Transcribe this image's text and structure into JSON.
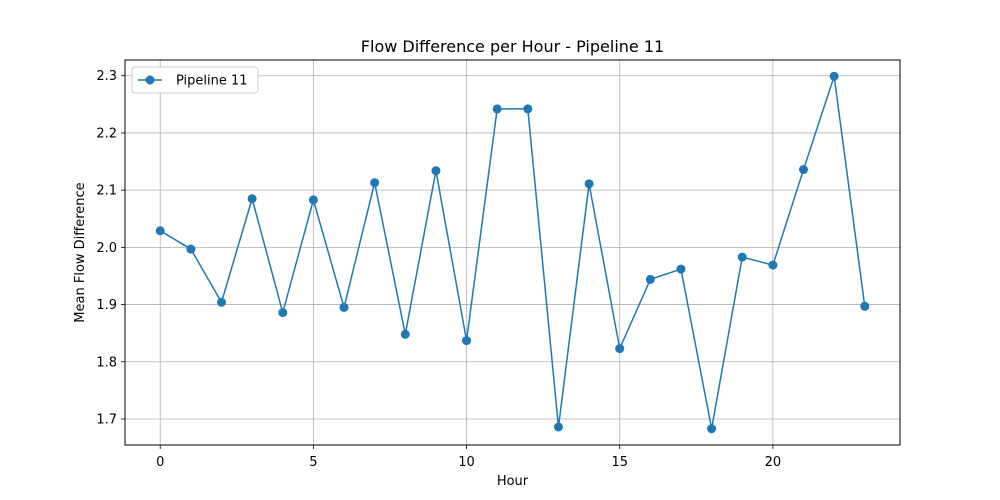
{
  "chart_data": {
    "type": "line",
    "title": "Flow Difference per Hour - Pipeline 11",
    "xlabel": "Hour",
    "ylabel": "Mean Flow Difference",
    "xlim": [
      -1.15,
      24.15
    ],
    "ylim": [
      1.6545,
      2.3275
    ],
    "xticks": [
      0,
      5,
      10,
      15,
      20
    ],
    "xtick_labels": [
      "0",
      "5",
      "10",
      "15",
      "20"
    ],
    "yticks": [
      1.7,
      1.8,
      1.9,
      2.0,
      2.1,
      2.2,
      2.3
    ],
    "ytick_labels": [
      "1.7",
      "1.8",
      "1.9",
      "2.0",
      "2.1",
      "2.2",
      "2.3"
    ],
    "grid": true,
    "legend_position": "top-left",
    "x": [
      0,
      1,
      2,
      3,
      4,
      5,
      6,
      7,
      8,
      9,
      10,
      11,
      12,
      13,
      14,
      15,
      16,
      17,
      18,
      19,
      20,
      21,
      22,
      23
    ],
    "series": [
      {
        "name": "Pipeline 11",
        "color": "#1f77b4",
        "marker": "circle",
        "values": [
          2.029,
          1.997,
          1.904,
          2.085,
          1.886,
          2.083,
          1.895,
          2.113,
          1.848,
          2.134,
          1.837,
          2.242,
          2.242,
          1.686,
          2.111,
          1.823,
          1.944,
          1.962,
          1.683,
          1.983,
          1.969,
          2.136,
          2.299,
          1.897
        ]
      }
    ]
  }
}
